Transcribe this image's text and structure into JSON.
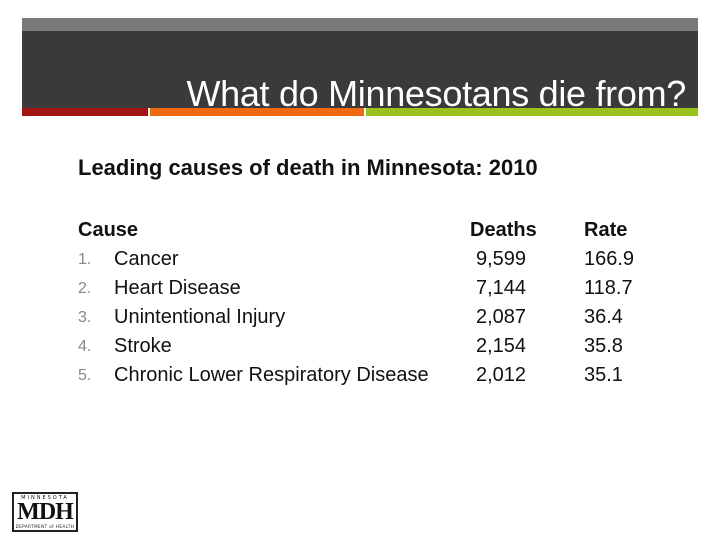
{
  "slide": {
    "title": "What do Minnesotans die from?",
    "subtitle": "Leading causes of death in Minnesota: 2010"
  },
  "table": {
    "headers": {
      "cause": "Cause",
      "deaths": "Deaths",
      "rate": "Rate"
    },
    "rows": [
      {
        "num": "1.",
        "cause": "Cancer",
        "deaths": "9,599",
        "rate": "166.9"
      },
      {
        "num": "2.",
        "cause": "Heart Disease",
        "deaths": "7,144",
        "rate": "118.7"
      },
      {
        "num": "3.",
        "cause": "Unintentional Injury",
        "deaths": "2,087",
        "rate": "36.4"
      },
      {
        "num": "4.",
        "cause": "Stroke",
        "deaths": "2,154",
        "rate": "35.8"
      },
      {
        "num": "5.",
        "cause": "Chronic Lower Respiratory Disease",
        "deaths": "2,012",
        "rate": "35.1"
      }
    ]
  },
  "logo": {
    "top": "MINNESOTA",
    "main": "MDH",
    "bottom": "DEPARTMENT of HEALTH"
  },
  "colors": {
    "title_bar": "#3a3a3a",
    "accent_red": "#a31515",
    "accent_orange": "#ee6b12",
    "accent_green": "#99c31a"
  }
}
